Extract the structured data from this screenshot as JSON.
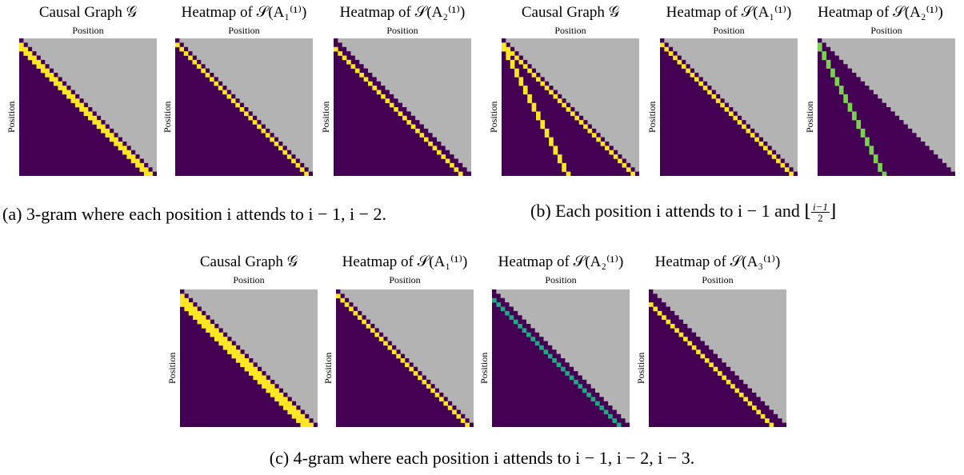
{
  "colors": {
    "masked": "#b3b3b3",
    "background": "#440154",
    "strong": "#fde725",
    "green": "#7ad151",
    "teal": "#22a884",
    "bluegreen": "#2a788e",
    "faint": "#482878"
  },
  "groups": [
    {
      "id": "a",
      "caption": "(a) 3-gram where each position i attends to i − 1, i − 2.",
      "panels": [
        {
          "title": "Causal Graph 𝒢",
          "xlabel": "Position",
          "ylabel": "Position"
        },
        {
          "title": "Heatmap of 𝒮(A₁⁽¹⁾)",
          "xlabel": "Position",
          "ylabel": "Position"
        },
        {
          "title": "Heatmap of 𝒮(A₂⁽¹⁾)",
          "xlabel": "Position",
          "ylabel": "Position"
        }
      ]
    },
    {
      "id": "b",
      "caption_prefix": "(b) Each position i attends to i − 1 and ⌊",
      "caption_frac_num": "i−1",
      "caption_frac_den": "2",
      "caption_suffix": "⌋",
      "panels": [
        {
          "title": "Causal Graph 𝒢",
          "xlabel": "Position",
          "ylabel": "Position"
        },
        {
          "title": "Heatmap of 𝒮(A₁⁽¹⁾)",
          "xlabel": "Position",
          "ylabel": "Position"
        },
        {
          "title": "Heatmap of 𝒮(A₂⁽¹⁾)",
          "xlabel": "Position",
          "ylabel": "Position"
        }
      ]
    },
    {
      "id": "c",
      "caption": "(c) 4-gram where each position i attends to i − 1, i − 2, i − 3.",
      "panels": [
        {
          "title": "Causal Graph 𝒢",
          "xlabel": "Position",
          "ylabel": "Position"
        },
        {
          "title": "Heatmap of 𝒮(A₁⁽¹⁾)",
          "xlabel": "Position",
          "ylabel": "Position"
        },
        {
          "title": "Heatmap of 𝒮(A₂⁽¹⁾)",
          "xlabel": "Position",
          "ylabel": "Position"
        },
        {
          "title": "Heatmap of 𝒮(A₃⁽¹⁾)",
          "xlabel": "Position",
          "ylabel": "Position"
        }
      ]
    }
  ],
  "chart_data": [
    {
      "type": "heatmap",
      "title": "Causal Graph 𝒢",
      "group": "a",
      "size": 32,
      "mask": "upper-triangle",
      "cells": [
        {
          "offset": 1,
          "weight": 1.0,
          "from_row": 1
        },
        {
          "offset": 2,
          "weight": 1.0,
          "from_row": 2
        }
      ]
    },
    {
      "type": "heatmap",
      "title": "Heatmap of 𝒮(A₁⁽¹⁾)",
      "group": "a",
      "size": 32,
      "mask": "upper-triangle",
      "cells": [
        {
          "offset": 1,
          "weight": 1.0,
          "from_row": 1
        }
      ]
    },
    {
      "type": "heatmap",
      "title": "Heatmap of 𝒮(A₂⁽¹⁾)",
      "group": "a",
      "size": 32,
      "mask": "upper-triangle",
      "cells": [
        {
          "offset": 2,
          "weight": 1.0,
          "from_row": 2
        }
      ]
    },
    {
      "type": "heatmap",
      "title": "Causal Graph 𝒢",
      "group": "b",
      "size": 32,
      "mask": "upper-triangle",
      "cells": [
        {
          "offset": 1,
          "weight": 1.0,
          "from_row": 1
        },
        {
          "rule": "half",
          "weight": 1.0
        }
      ]
    },
    {
      "type": "heatmap",
      "title": "Heatmap of 𝒮(A₁⁽¹⁾)",
      "group": "b",
      "size": 32,
      "mask": "upper-triangle",
      "cells": [
        {
          "offset": 1,
          "weight": 1.0,
          "from_row": 1
        }
      ]
    },
    {
      "type": "heatmap",
      "title": "Heatmap of 𝒮(A₂⁽¹⁾)",
      "group": "b",
      "size": 32,
      "mask": "upper-triangle",
      "cells": [
        {
          "rule": "half",
          "weight": 0.8
        }
      ]
    },
    {
      "type": "heatmap",
      "title": "Causal Graph 𝒢",
      "group": "c",
      "size": 32,
      "mask": "upper-triangle",
      "cells": [
        {
          "offset": 1,
          "weight": 1.0,
          "from_row": 1
        },
        {
          "offset": 2,
          "weight": 1.0,
          "from_row": 2
        },
        {
          "offset": 3,
          "weight": 1.0,
          "from_row": 3
        }
      ]
    },
    {
      "type": "heatmap",
      "title": "Heatmap of 𝒮(A₁⁽¹⁾)",
      "group": "c",
      "size": 32,
      "mask": "upper-triangle",
      "cells": [
        {
          "offset": 1,
          "weight": 1.0,
          "from_row": 1
        }
      ]
    },
    {
      "type": "heatmap",
      "title": "Heatmap of 𝒮(A₂⁽¹⁾)",
      "group": "c",
      "size": 32,
      "mask": "upper-triangle",
      "cells": [
        {
          "offset": 2,
          "weight": 0.7,
          "from_row": 2
        }
      ]
    },
    {
      "type": "heatmap",
      "title": "Heatmap of 𝒮(A₃⁽¹⁾)",
      "group": "c",
      "size": 32,
      "mask": "upper-triangle",
      "cells": [
        {
          "offset": 3,
          "weight": 1.0,
          "from_row": 3
        }
      ]
    }
  ]
}
